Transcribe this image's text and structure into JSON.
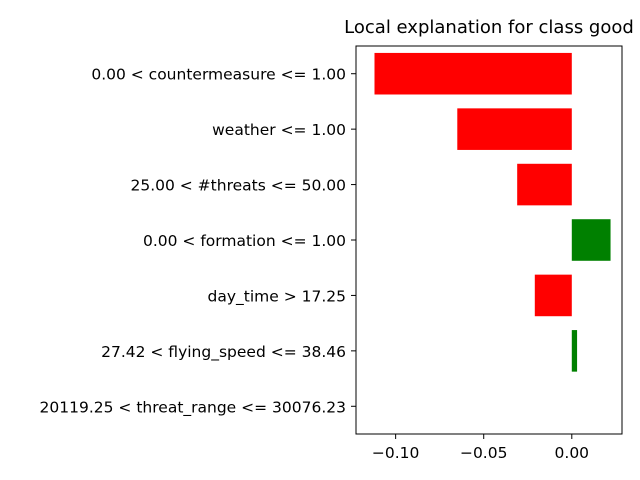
{
  "chart_data": {
    "type": "bar",
    "orientation": "horizontal",
    "title": "Local explanation for class good",
    "xlabel": "",
    "ylabel": "",
    "categories": [
      "0.00 < countermeasure <= 1.00",
      "weather <= 1.00",
      "25.00 < #threats <= 50.00",
      "0.00 < formation <= 1.00",
      "day_time > 17.25",
      "27.42 < flying_speed <= 38.46",
      "20119.25 < threat_range <= 30076.23"
    ],
    "values": [
      -0.112,
      -0.065,
      -0.031,
      0.022,
      -0.021,
      0.003,
      0.0
    ],
    "colors": {
      "positive": "#008000",
      "negative": "#ff0000"
    },
    "xlim": [
      -0.1225,
      0.0285
    ],
    "xticks": [
      -0.1,
      -0.05,
      0.0
    ],
    "xtick_labels": [
      "−0.10",
      "−0.05",
      "0.00"
    ],
    "grid": false,
    "legend": "none"
  }
}
